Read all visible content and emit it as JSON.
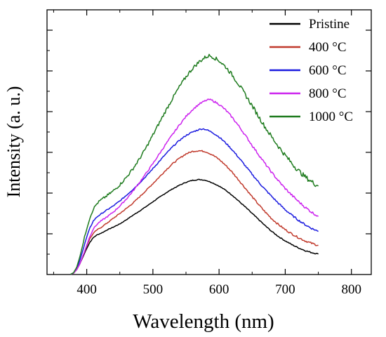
{
  "chart_data": {
    "type": "line",
    "title": "",
    "xlabel": "Wavelength (nm)",
    "ylabel": "Intensity (a. u.)",
    "xlim": [
      340,
      830
    ],
    "ylim": [
      0,
      100
    ],
    "x_ticks": [
      400,
      500,
      600,
      700,
      800
    ],
    "x_tick_labels": [
      "400",
      "500",
      "600",
      "700",
      "800"
    ],
    "y_tick_labels_shown": false,
    "grid": false,
    "legend_position": "top-right",
    "series": [
      {
        "name": "Pristine",
        "color": "#000000",
        "noise": 0.2,
        "points": [
          [
            375,
            0
          ],
          [
            380,
            0.5
          ],
          [
            385,
            2
          ],
          [
            390,
            4.5
          ],
          [
            395,
            7.5
          ],
          [
            400,
            10.5
          ],
          [
            405,
            13
          ],
          [
            410,
            14.8
          ],
          [
            415,
            15.8
          ],
          [
            420,
            16.4
          ],
          [
            425,
            17
          ],
          [
            430,
            17.8
          ],
          [
            440,
            19
          ],
          [
            450,
            20.3
          ],
          [
            460,
            22
          ],
          [
            470,
            23.8
          ],
          [
            480,
            25.5
          ],
          [
            490,
            27.3
          ],
          [
            500,
            29.2
          ],
          [
            510,
            31
          ],
          [
            520,
            32.8
          ],
          [
            530,
            34.4
          ],
          [
            540,
            35.8
          ],
          [
            550,
            37
          ],
          [
            560,
            37.8
          ],
          [
            570,
            38.1
          ],
          [
            575,
            38
          ],
          [
            580,
            37.8
          ],
          [
            590,
            36.8
          ],
          [
            600,
            35.5
          ],
          [
            610,
            33.8
          ],
          [
            620,
            31.8
          ],
          [
            630,
            29.4
          ],
          [
            640,
            27
          ],
          [
            650,
            24.5
          ],
          [
            660,
            22
          ],
          [
            670,
            19.5
          ],
          [
            680,
            17.2
          ],
          [
            690,
            15.2
          ],
          [
            700,
            13.5
          ],
          [
            710,
            12
          ],
          [
            720,
            10.7
          ],
          [
            730,
            9.6
          ],
          [
            740,
            8.8
          ],
          [
            750,
            8.2
          ]
        ]
      },
      {
        "name": "400 °C",
        "color": "#c0392b",
        "noise": 0.35,
        "points": [
          [
            375,
            0
          ],
          [
            380,
            0.5
          ],
          [
            385,
            2
          ],
          [
            390,
            4.5
          ],
          [
            395,
            8
          ],
          [
            400,
            11.5
          ],
          [
            405,
            14.5
          ],
          [
            410,
            16.5
          ],
          [
            415,
            17.8
          ],
          [
            420,
            18.6
          ],
          [
            430,
            20.5
          ],
          [
            440,
            22.5
          ],
          [
            450,
            24.5
          ],
          [
            460,
            26.5
          ],
          [
            470,
            28.7
          ],
          [
            480,
            31.2
          ],
          [
            490,
            33.8
          ],
          [
            500,
            36.5
          ],
          [
            510,
            39.2
          ],
          [
            520,
            42
          ],
          [
            530,
            44.5
          ],
          [
            540,
            46.6
          ],
          [
            550,
            48.4
          ],
          [
            560,
            49.4
          ],
          [
            570,
            49.7
          ],
          [
            580,
            49.3
          ],
          [
            590,
            48
          ],
          [
            600,
            46.2
          ],
          [
            610,
            43.8
          ],
          [
            620,
            41
          ],
          [
            630,
            37.8
          ],
          [
            640,
            34.5
          ],
          [
            650,
            31.2
          ],
          [
            660,
            28
          ],
          [
            670,
            25
          ],
          [
            680,
            22.3
          ],
          [
            690,
            20
          ],
          [
            700,
            18
          ],
          [
            710,
            16.3
          ],
          [
            720,
            14.8
          ],
          [
            730,
            13.5
          ],
          [
            740,
            12.5
          ],
          [
            750,
            11.7
          ]
        ]
      },
      {
        "name": "600 °C",
        "color": "#1a1adf",
        "noise": 0.35,
        "points": [
          [
            375,
            0
          ],
          [
            380,
            0.6
          ],
          [
            385,
            2.5
          ],
          [
            390,
            6
          ],
          [
            395,
            10.5
          ],
          [
            400,
            15
          ],
          [
            405,
            18.8
          ],
          [
            410,
            21.5
          ],
          [
            415,
            23
          ],
          [
            420,
            24
          ],
          [
            430,
            25.8
          ],
          [
            440,
            27.5
          ],
          [
            450,
            29.5
          ],
          [
            460,
            31.8
          ],
          [
            470,
            34.2
          ],
          [
            480,
            36.8
          ],
          [
            490,
            39.5
          ],
          [
            500,
            42.5
          ],
          [
            510,
            45.5
          ],
          [
            520,
            48.5
          ],
          [
            530,
            51.3
          ],
          [
            540,
            53.8
          ],
          [
            550,
            55.8
          ],
          [
            560,
            57.2
          ],
          [
            570,
            58.2
          ],
          [
            575,
            58.5
          ],
          [
            580,
            58.2
          ],
          [
            590,
            57
          ],
          [
            600,
            55.2
          ],
          [
            610,
            52.8
          ],
          [
            620,
            50
          ],
          [
            630,
            46.8
          ],
          [
            640,
            43.5
          ],
          [
            650,
            40.2
          ],
          [
            660,
            37
          ],
          [
            670,
            34
          ],
          [
            680,
            31.2
          ],
          [
            690,
            28.5
          ],
          [
            700,
            26
          ],
          [
            710,
            23.8
          ],
          [
            720,
            21.8
          ],
          [
            730,
            20
          ],
          [
            740,
            18.5
          ],
          [
            750,
            17.3
          ]
        ]
      },
      {
        "name": "800 °C",
        "color": "#cc22ee",
        "noise": 0.45,
        "points": [
          [
            375,
            0
          ],
          [
            380,
            0.5
          ],
          [
            385,
            2
          ],
          [
            390,
            4.5
          ],
          [
            395,
            8
          ],
          [
            400,
            11.8
          ],
          [
            405,
            15.5
          ],
          [
            410,
            18.3
          ],
          [
            415,
            20
          ],
          [
            420,
            21.2
          ],
          [
            430,
            23
          ],
          [
            440,
            25
          ],
          [
            450,
            27.5
          ],
          [
            460,
            30.3
          ],
          [
            470,
            33.5
          ],
          [
            480,
            37
          ],
          [
            490,
            40.7
          ],
          [
            500,
            44.5
          ],
          [
            510,
            48.5
          ],
          [
            520,
            52.5
          ],
          [
            530,
            56.3
          ],
          [
            540,
            60
          ],
          [
            550,
            63.4
          ],
          [
            560,
            66.2
          ],
          [
            570,
            68.4
          ],
          [
            580,
            69.8
          ],
          [
            585,
            70.2
          ],
          [
            590,
            69.8
          ],
          [
            600,
            68.3
          ],
          [
            610,
            66
          ],
          [
            620,
            63
          ],
          [
            630,
            59.5
          ],
          [
            640,
            55.7
          ],
          [
            650,
            51.8
          ],
          [
            660,
            48
          ],
          [
            670,
            44.3
          ],
          [
            680,
            40.8
          ],
          [
            690,
            37.5
          ],
          [
            700,
            34.5
          ],
          [
            710,
            31.8
          ],
          [
            720,
            29.3
          ],
          [
            730,
            27
          ],
          [
            740,
            25
          ],
          [
            750,
            23.3
          ]
        ]
      },
      {
        "name": "1000 °C",
        "color": "#1e7b1e",
        "noise": 0.9,
        "points": [
          [
            375,
            0
          ],
          [
            380,
            0.7
          ],
          [
            385,
            3
          ],
          [
            390,
            7.5
          ],
          [
            395,
            13
          ],
          [
            400,
            18.5
          ],
          [
            405,
            23
          ],
          [
            410,
            26.3
          ],
          [
            415,
            28.3
          ],
          [
            420,
            29.6
          ],
          [
            430,
            31.5
          ],
          [
            440,
            33.5
          ],
          [
            450,
            36
          ],
          [
            460,
            39
          ],
          [
            470,
            42.5
          ],
          [
            480,
            46.5
          ],
          [
            490,
            51
          ],
          [
            500,
            56
          ],
          [
            510,
            61
          ],
          [
            520,
            66
          ],
          [
            530,
            70.8
          ],
          [
            540,
            75.3
          ],
          [
            550,
            79.3
          ],
          [
            560,
            82.7
          ],
          [
            570,
            85.4
          ],
          [
            580,
            87.3
          ],
          [
            585,
            87.8
          ],
          [
            590,
            87.4
          ],
          [
            600,
            85.8
          ],
          [
            610,
            83.3
          ],
          [
            620,
            80
          ],
          [
            630,
            76.2
          ],
          [
            640,
            72
          ],
          [
            650,
            67.7
          ],
          [
            660,
            63.3
          ],
          [
            670,
            59
          ],
          [
            680,
            55
          ],
          [
            690,
            51.3
          ],
          [
            700,
            47.8
          ],
          [
            710,
            44.6
          ],
          [
            720,
            41.7
          ],
          [
            730,
            39.2
          ],
          [
            740,
            37.2
          ],
          [
            750,
            35.5
          ]
        ]
      }
    ]
  }
}
